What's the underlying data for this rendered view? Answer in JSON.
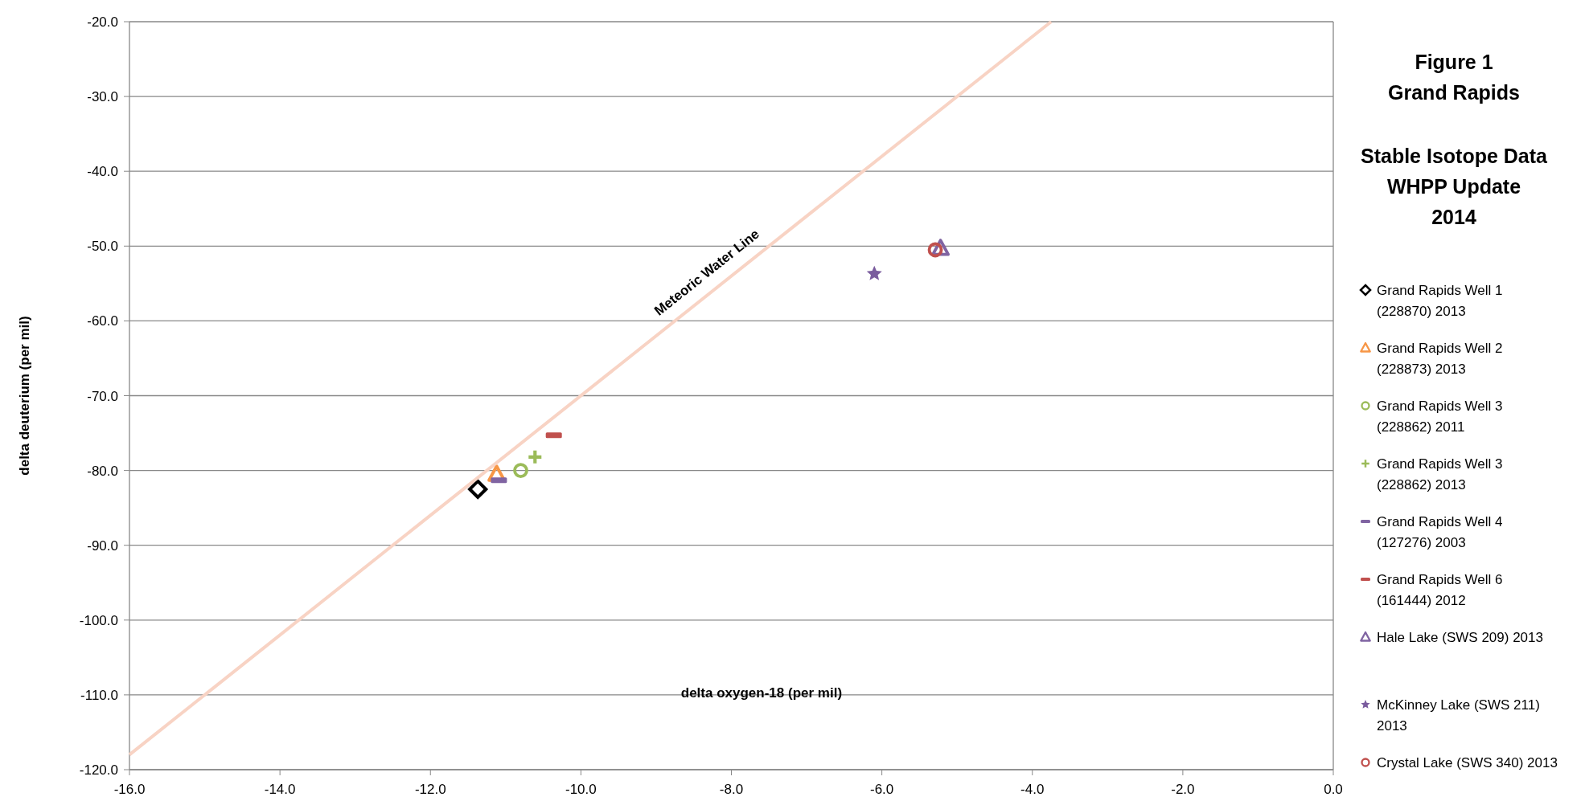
{
  "chart_data": {
    "type": "scatter",
    "title": "Figure 1\nGrand Rapids",
    "subtitle": "Stable Isotope Data\nWHPP Update\n2014",
    "xlabel": "delta oxygen-18 (per mil)",
    "ylabel": "delta deuterium (per mil)",
    "xlim": [
      -16,
      0
    ],
    "ylim": [
      -120,
      -20
    ],
    "xticks": [
      {
        "value": -16,
        "label": "-16.0"
      },
      {
        "value": -14,
        "label": "-14.0"
      },
      {
        "value": -12,
        "label": "-12.0"
      },
      {
        "value": -10,
        "label": "-10.0"
      },
      {
        "value": -8,
        "label": "-8.0"
      },
      {
        "value": -6,
        "label": "-6.0"
      },
      {
        "value": -4,
        "label": "-4.0"
      },
      {
        "value": -2,
        "label": "-2.0"
      },
      {
        "value": 0,
        "label": "0.0"
      }
    ],
    "yticks": [
      {
        "value": -120,
        "label": "-120.0"
      },
      {
        "value": -110,
        "label": "-110.0"
      },
      {
        "value": -100,
        "label": "-100.0"
      },
      {
        "value": -90,
        "label": "-90.0"
      },
      {
        "value": -80,
        "label": "-80.0"
      },
      {
        "value": -70,
        "label": "-70.0"
      },
      {
        "value": -60,
        "label": "-60.0"
      },
      {
        "value": -50,
        "label": "-50.0"
      },
      {
        "value": -40,
        "label": "-40.0"
      },
      {
        "value": -30,
        "label": "-30.0"
      },
      {
        "value": -20,
        "label": "-20.0"
      }
    ],
    "grid": "y",
    "legend": "right",
    "series": [
      {
        "name": "Grand Rapids Well 1 (228870) 2013",
        "color": "#000000",
        "marker": "diamond",
        "x": [
          -11.37
        ],
        "values": [
          -82.5
        ]
      },
      {
        "name": "Grand Rapids Well 2 (228873) 2013",
        "color": "#f79646",
        "marker": "triangle",
        "x": [
          -11.12
        ],
        "values": [
          -80.5
        ]
      },
      {
        "name": "Grand Rapids Well 3 (228862) 2011",
        "color": "#9bbb59",
        "marker": "circle",
        "x": [
          -10.8
        ],
        "values": [
          -80.0
        ]
      },
      {
        "name": "Grand Rapids Well 3 (228862) 2013",
        "color": "#9bbb59",
        "marker": "cross",
        "x": [
          -10.61
        ],
        "values": [
          -78.2
        ]
      },
      {
        "name": "Grand Rapids Well 4 (127276) 2003",
        "color": "#8064a2",
        "marker": "square",
        "x": [
          -11.09
        ],
        "values": [
          -81.3
        ]
      },
      {
        "name": "Grand Rapids Well 6 (161444) 2012",
        "color": "#c0504d",
        "marker": "square",
        "x": [
          -10.36
        ],
        "values": [
          -75.3
        ]
      },
      {
        "name": "Hale Lake (SWS 209) 2013",
        "color": "#8064a2",
        "marker": "triangle",
        "x": [
          -5.22
        ],
        "values": [
          -50.3
        ]
      },
      {
        "name": "McKinney Lake (SWS 211) 2013",
        "color": "#7a5c9e",
        "marker": "star",
        "x": [
          -6.1
        ],
        "values": [
          -53.7
        ]
      },
      {
        "name": "Crystal Lake (SWS 340) 2013",
        "color": "#c0504d",
        "marker": "circle",
        "x": [
          -5.29
        ],
        "values": [
          -50.5
        ]
      },
      {
        "name": "Meteoric Water Line",
        "type": "line",
        "color": "#f8d3c4",
        "x": [
          -16,
          -3.75
        ],
        "values": [
          -118,
          -20
        ]
      }
    ]
  }
}
